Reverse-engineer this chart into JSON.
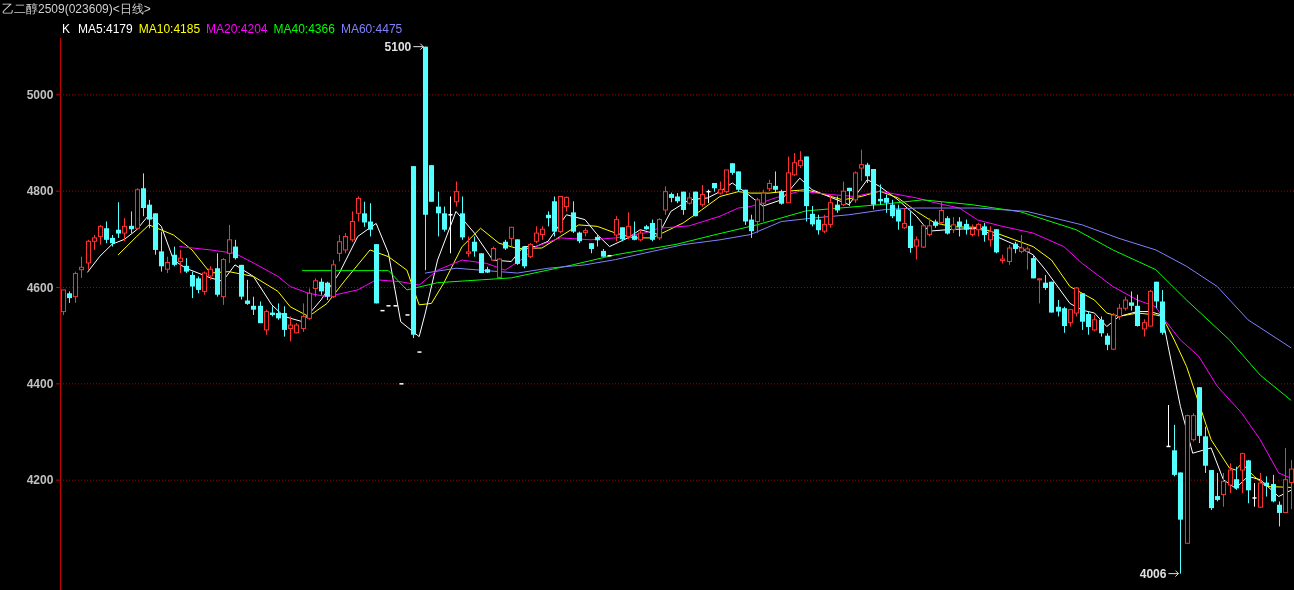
{
  "chart_data": {
    "type": "candlestick",
    "title": "乙二醇2509(023609)<日线>",
    "legend_title": "K",
    "legend": "top left",
    "grid": "y",
    "ylim": [
      3972,
      5118
    ],
    "yticks": [
      4200,
      4400,
      4600,
      4800,
      5000
    ],
    "categories": [
      null,
      null,
      null,
      null,
      null,
      null,
      null,
      null,
      null,
      null,
      null,
      null,
      null,
      null,
      null,
      null,
      null,
      null,
      null,
      null,
      null,
      null,
      null,
      null,
      null,
      null,
      null,
      null,
      null,
      null,
      null,
      null,
      null,
      null,
      null,
      null,
      null,
      null,
      null,
      null,
      null,
      null,
      null,
      null,
      null,
      null,
      null,
      null,
      null,
      null,
      null,
      null,
      null,
      null,
      null,
      null,
      null,
      null,
      null,
      null,
      null,
      null,
      null,
      null,
      null,
      null,
      null,
      null,
      null,
      null,
      null,
      null,
      null,
      null,
      null,
      null,
      null,
      null,
      null,
      null,
      null,
      null,
      null,
      null,
      null,
      null,
      null,
      null,
      null,
      null,
      null,
      null,
      null,
      null,
      null,
      null,
      null,
      null,
      null,
      null,
      null,
      null,
      null,
      null,
      null,
      null,
      null,
      null,
      null,
      null,
      null,
      null,
      null,
      null,
      null,
      null,
      null,
      null,
      null,
      null,
      null,
      null,
      null,
      null,
      null,
      null,
      null,
      null,
      null,
      null,
      null,
      null,
      null,
      null,
      null,
      null,
      null,
      null,
      null,
      null,
      null,
      null,
      null,
      null,
      null,
      null,
      null,
      null,
      null,
      null,
      null,
      null,
      null,
      null,
      null,
      null,
      null,
      null,
      null,
      null,
      null,
      null,
      null,
      null,
      null,
      null,
      null,
      null,
      null,
      null,
      null,
      null,
      null,
      null,
      null,
      null,
      null,
      null,
      null,
      null,
      null,
      null,
      null,
      null,
      null,
      null,
      null,
      null,
      null,
      null,
      null,
      null,
      null,
      null,
      null,
      null,
      null,
      null,
      null,
      null,
      null
    ],
    "ohlc": [
      [
        4550,
        4595,
        4543,
        4595
      ],
      [
        4588,
        4592,
        4568,
        4578
      ],
      [
        4581,
        4633,
        4568,
        4629
      ],
      [
        4637,
        4664,
        4620,
        4642
      ],
      [
        4651,
        4699,
        4637,
        4696
      ],
      [
        4696,
        4709,
        4678,
        4703
      ],
      [
        4706,
        4730,
        4689,
        4727
      ],
      [
        4723,
        4737,
        4692,
        4699
      ],
      [
        4703,
        4709,
        4685,
        4692
      ],
      [
        4720,
        4777,
        4703,
        4712
      ],
      [
        4713,
        4744,
        4696,
        4727
      ],
      [
        4728,
        4758,
        4713,
        4721
      ],
      [
        4723,
        4806,
        4720,
        4803
      ],
      [
        4806,
        4837,
        4748,
        4765
      ],
      [
        4772,
        4782,
        4723,
        4741
      ],
      [
        4754,
        4754,
        4668,
        4678
      ],
      [
        4675,
        4716,
        4633,
        4644
      ],
      [
        4638,
        4664,
        4630,
        4652
      ],
      [
        4668,
        4685,
        4644,
        4647
      ],
      [
        4654,
        4678,
        4630,
        4661
      ],
      [
        4645,
        4661,
        4630,
        4633
      ],
      [
        4626,
        4633,
        4578,
        4602
      ],
      [
        4619,
        4623,
        4588,
        4595
      ],
      [
        4592,
        4633,
        4585,
        4630
      ],
      [
        4624,
        4644,
        4616,
        4638
      ],
      [
        4640,
        4671,
        4581,
        4585
      ],
      [
        4581,
        4661,
        4564,
        4658
      ],
      [
        4671,
        4730,
        4651,
        4699
      ],
      [
        4685,
        4699,
        4658,
        4661
      ],
      [
        4647,
        4647,
        4575,
        4581
      ],
      [
        4573,
        4616,
        4564,
        4566
      ],
      [
        4562,
        4581,
        4543,
        4554
      ],
      [
        4562,
        4571,
        4526,
        4526
      ],
      [
        4512,
        4554,
        4502,
        4550
      ],
      [
        4548,
        4561,
        4540,
        4543
      ],
      [
        4547,
        4567,
        4533,
        4536
      ],
      [
        4547,
        4561,
        4498,
        4512
      ],
      [
        4515,
        4540,
        4488,
        4522
      ],
      [
        4506,
        4526,
        4505,
        4522
      ],
      [
        4515,
        4567,
        4508,
        4540
      ],
      [
        4536,
        4598,
        4533,
        4588
      ],
      [
        4598,
        4619,
        4581,
        4614
      ],
      [
        4612,
        4619,
        4585,
        4592
      ],
      [
        4610,
        4612,
        4574,
        4581
      ],
      [
        4581,
        4657,
        4578,
        4647
      ],
      [
        4671,
        4709,
        4654,
        4695
      ],
      [
        4678,
        4713,
        4671,
        4706
      ],
      [
        4699,
        4758,
        4695,
        4737
      ],
      [
        4754,
        4789,
        4737,
        4785
      ],
      [
        4754,
        4778,
        4726,
        4735
      ],
      [
        4737,
        4775,
        4706,
        4720
      ],
      [
        4690,
        4690,
        4567,
        4567
      ],
      [
        4552,
        4552,
        4552,
        4552
      ],
      [
        4562,
        4562,
        4562,
        4562
      ],
      [
        4562,
        4562,
        4562,
        4562
      ],
      [
        4400,
        4400,
        4400,
        4400
      ],
      [
        4543,
        4543,
        4543,
        4543
      ],
      [
        4852,
        4852,
        4495,
        4502
      ],
      [
        4466,
        4466,
        4466,
        4466
      ],
      [
        5100,
        5100,
        4636,
        4751
      ],
      [
        4854,
        4854,
        4778,
        4778
      ],
      [
        4768,
        4799,
        4706,
        4754
      ],
      [
        4754,
        4768,
        4716,
        4720
      ],
      [
        4751,
        4789,
        4671,
        4751
      ],
      [
        4778,
        4820,
        4768,
        4799
      ],
      [
        4754,
        4789,
        4699,
        4704
      ],
      [
        4671,
        4706,
        4664,
        4674
      ],
      [
        4695,
        4706,
        4664,
        4675
      ],
      [
        4671,
        4671,
        4630,
        4630
      ],
      [
        4638,
        4643,
        4630,
        4631
      ],
      [
        4657,
        4685,
        4657,
        4681
      ],
      [
        4621,
        4661,
        4619,
        4659
      ],
      [
        4695,
        4699,
        4678,
        4681
      ],
      [
        4702,
        4726,
        4685,
        4725
      ],
      [
        4700,
        4700,
        4647,
        4649
      ],
      [
        4685,
        4685,
        4640,
        4644
      ],
      [
        4664,
        4692,
        4661,
        4689
      ],
      [
        4696,
        4727,
        4692,
        4713
      ],
      [
        4710,
        4727,
        4699,
        4721
      ],
      [
        4751,
        4758,
        4727,
        4744
      ],
      [
        4779,
        4789,
        4706,
        4716
      ],
      [
        4716,
        4789,
        4713,
        4789
      ],
      [
        4768,
        4789,
        4758,
        4787
      ],
      [
        4756,
        4779,
        4713,
        4716
      ],
      [
        4714,
        4716,
        4692,
        4696
      ],
      [
        4714,
        4723,
        4706,
        4718
      ],
      [
        4692,
        4692,
        4671,
        4680
      ],
      [
        4705,
        4709,
        4685,
        4698
      ],
      [
        4676,
        4680,
        4664,
        4664
      ],
      [
        4666,
        4666,
        4666,
        4666
      ],
      [
        4709,
        4748,
        4696,
        4741
      ],
      [
        4725,
        4725,
        4696,
        4700
      ],
      [
        4706,
        4756,
        4700,
        4727
      ],
      [
        4708,
        4737,
        4698,
        4699
      ],
      [
        4699,
        4720,
        4696,
        4713
      ],
      [
        4727,
        4730,
        4720,
        4721
      ],
      [
        4734,
        4741,
        4696,
        4699
      ],
      [
        4703,
        4744,
        4699,
        4741
      ],
      [
        4761,
        4810,
        4751,
        4799
      ],
      [
        4794,
        4797,
        4777,
        4786
      ],
      [
        4789,
        4796,
        4775,
        4779
      ],
      [
        4799,
        4799,
        4751,
        4761
      ],
      [
        4775,
        4797,
        4772,
        4786
      ],
      [
        4799,
        4799,
        4748,
        4748
      ],
      [
        4772,
        4813,
        4768,
        4793
      ],
      [
        4799,
        4803,
        4775,
        4799
      ],
      [
        4817,
        4817,
        4799,
        4806
      ],
      [
        4796,
        4820,
        4793,
        4803
      ],
      [
        4799,
        4844,
        4796,
        4844
      ],
      [
        4858,
        4858,
        4834,
        4838
      ],
      [
        4841,
        4841,
        4799,
        4803
      ],
      [
        4803,
        4803,
        4730,
        4737
      ],
      [
        4741,
        4751,
        4703,
        4717
      ],
      [
        4737,
        4786,
        4713,
        4782
      ],
      [
        4775,
        4803,
        4737,
        4796
      ],
      [
        4805,
        4824,
        4800,
        4816
      ],
      [
        4811,
        4841,
        4796,
        4803
      ],
      [
        4800,
        4803,
        4772,
        4774
      ],
      [
        4776,
        4872,
        4776,
        4838
      ],
      [
        4834,
        4879,
        4831,
        4859
      ],
      [
        4853,
        4883,
        4848,
        4864
      ],
      [
        4872,
        4872,
        4737,
        4769
      ],
      [
        4753,
        4769,
        4727,
        4731
      ],
      [
        4741,
        4751,
        4710,
        4719
      ],
      [
        4717,
        4751,
        4713,
        4731
      ],
      [
        4731,
        4793,
        4724,
        4776
      ],
      [
        4772,
        4789,
        4755,
        4760
      ],
      [
        4772,
        4820,
        4769,
        4800
      ],
      [
        4807,
        4807,
        4769,
        4800
      ],
      [
        4782,
        4841,
        4776,
        4838
      ],
      [
        4848,
        4886,
        4821,
        4855
      ],
      [
        4855,
        4859,
        4817,
        4831
      ],
      [
        4846,
        4846,
        4762,
        4772
      ],
      [
        4784,
        4814,
        4772,
        4779
      ],
      [
        4786,
        4793,
        4755,
        4776
      ],
      [
        4772,
        4782,
        4744,
        4748
      ],
      [
        4762,
        4772,
        4720,
        4737
      ],
      [
        4724,
        4765,
        4722,
        4733
      ],
      [
        4728,
        4758,
        4672,
        4682
      ],
      [
        4686,
        4706,
        4658,
        4699
      ],
      [
        4684,
        4731,
        4682,
        4728
      ],
      [
        4710,
        4744,
        4706,
        4728
      ],
      [
        4737,
        4741,
        4724,
        4728
      ],
      [
        4735,
        4779,
        4731,
        4760
      ],
      [
        4744,
        4748,
        4710,
        4712
      ],
      [
        4720,
        4746,
        4713,
        4730
      ],
      [
        4737,
        4746,
        4706,
        4726
      ],
      [
        4732,
        4741,
        4710,
        4720
      ],
      [
        4710,
        4731,
        4706,
        4721
      ],
      [
        4720,
        4734,
        4706,
        4731
      ],
      [
        4727,
        4734,
        4695,
        4709
      ],
      [
        4699,
        4727,
        4685,
        4716
      ],
      [
        4721,
        4721,
        4671,
        4673
      ],
      [
        4656,
        4668,
        4650,
        4659
      ],
      [
        4654,
        4688,
        4647,
        4682
      ],
      [
        4691,
        4695,
        4671,
        4680
      ],
      [
        4675,
        4709,
        4671,
        4682
      ],
      [
        4675,
        4685,
        4637,
        4680
      ],
      [
        4661,
        4668,
        4619,
        4619
      ],
      [
        4616,
        4619,
        4567,
        4618
      ],
      [
        4610,
        4626,
        4595,
        4599
      ],
      [
        4612,
        4612,
        4548,
        4548
      ],
      [
        4560,
        4574,
        4540,
        4550
      ],
      [
        4557,
        4560,
        4506,
        4520
      ],
      [
        4527,
        4555,
        4519,
        4554
      ],
      [
        4547,
        4601,
        4540,
        4599
      ],
      [
        4588,
        4588,
        4512,
        4529
      ],
      [
        4545,
        4550,
        4502,
        4518
      ],
      [
        4512,
        4543,
        4509,
        4533
      ],
      [
        4533,
        4540,
        4498,
        4505
      ],
      [
        4500,
        4505,
        4470,
        4481
      ],
      [
        4472,
        4547,
        4470,
        4543
      ],
      [
        4540,
        4566,
        4533,
        4557
      ],
      [
        4557,
        4581,
        4552,
        4574
      ],
      [
        4569,
        4592,
        4552,
        4562
      ],
      [
        4562,
        4585,
        4519,
        4520
      ],
      [
        4514,
        4534,
        4498,
        4527
      ],
      [
        4520,
        4595,
        4519,
        4592
      ],
      [
        4612,
        4612,
        4557,
        4571
      ],
      [
        4571,
        4595,
        4502,
        4506
      ],
      [
        4270,
        4356,
        4270,
        4270
      ],
      [
        4262,
        4315,
        4208,
        4211
      ],
      [
        4216,
        4216,
        4006,
        4118
      ],
      [
        4069,
        4336,
        4069,
        4334
      ],
      [
        4284,
        4339,
        4280,
        4334
      ],
      [
        4393,
        4393,
        4277,
        4292
      ],
      [
        4291,
        4311,
        4215,
        4230
      ],
      [
        4221,
        4221,
        4138,
        4142
      ],
      [
        4167,
        4215,
        4156,
        4159
      ],
      [
        4170,
        4215,
        4145,
        4197
      ],
      [
        4190,
        4235,
        4173,
        4221
      ],
      [
        4202,
        4228,
        4180,
        4183
      ],
      [
        4221,
        4257,
        4173,
        4255
      ],
      [
        4241,
        4242,
        4152,
        4179
      ],
      [
        4163,
        4194,
        4145,
        4163
      ],
      [
        4144,
        4215,
        4142,
        4194
      ],
      [
        4195,
        4208,
        4166,
        4188
      ],
      [
        4192,
        4211,
        4154,
        4156
      ],
      [
        4149,
        4156,
        4104,
        4132
      ],
      [
        4133,
        4267,
        4132,
        4201
      ],
      [
        4195,
        4242,
        4140,
        4223
      ]
    ],
    "colors": [
      "#ff3232",
      "#54ffff",
      "#ff3232",
      "#ff3232",
      "#ff3232",
      "#ff3232",
      "#ff3232",
      "#54ffff",
      "#54ffff",
      "#54ffff",
      "#ff3232",
      "#54ffff",
      "#ff3232",
      "#54ffff",
      "#54ffff",
      "#54ffff",
      "#54ffff",
      "#ff3232",
      "#54ffff",
      "#ff3232",
      "#54ffff",
      "#54ffff",
      "#54ffff",
      "#ff3232",
      "#ff3232",
      "#54ffff",
      "#ff3232",
      "#ff3232",
      "#54ffff",
      "#54ffff",
      "#54ffff",
      "#54ffff",
      "#54ffff",
      "#ff3232",
      "#54ffff",
      "#54ffff",
      "#54ffff",
      "#ff3232",
      "#ff3232",
      "#ff3232",
      "#ff3232",
      "#ff3232",
      "#54ffff",
      "#54ffff",
      "#ff3232",
      "#ff3232",
      "#ff3232",
      "#ff3232",
      "#ff3232",
      "#54ffff",
      "#54ffff",
      "#54ffff",
      "#ffffff",
      "#ffffff",
      "#ffffff",
      "#ffffff",
      "#ffffff",
      "#54ffff",
      "#ffffff",
      "#54ffff",
      "#54ffff",
      "#54ffff",
      "#54ffff",
      "#ffffff",
      "#ff3232",
      "#54ffff",
      "#ff3232",
      "#54ffff",
      "#54ffff",
      "#54ffff",
      "#ff3232",
      "#ff3232",
      "#54ffff",
      "#ff3232",
      "#54ffff",
      "#54ffff",
      "#ff3232",
      "#ff3232",
      "#ff3232",
      "#54ffff",
      "#54ffff",
      "#ff3232",
      "#ff3232",
      "#54ffff",
      "#54ffff",
      "#ff3232",
      "#54ffff",
      "#54ffff",
      "#54ffff",
      "#ffffff",
      "#ff3232",
      "#54ffff",
      "#ff3232",
      "#54ffff",
      "#ff3232",
      "#54ffff",
      "#54ffff",
      "#ff3232",
      "#ff3232",
      "#54ffff",
      "#54ffff",
      "#54ffff",
      "#ff3232",
      "#54ffff",
      "#ff3232",
      "#ffffff",
      "#54ffff",
      "#ff3232",
      "#ff3232",
      "#54ffff",
      "#54ffff",
      "#54ffff",
      "#54ffff",
      "#ff3232",
      "#ff3232",
      "#ff3232",
      "#54ffff",
      "#54ffff",
      "#ff3232",
      "#ff3232",
      "#ff3232",
      "#54ffff",
      "#54ffff",
      "#54ffff",
      "#ff3232",
      "#ff3232",
      "#54ffff",
      "#ff3232",
      "#54ffff",
      "#ff3232",
      "#ff3232",
      "#54ffff",
      "#54ffff",
      "#54ffff",
      "#54ffff",
      "#54ffff",
      "#54ffff",
      "#ff3232",
      "#54ffff",
      "#ff3232",
      "#ff3232",
      "#ff3232",
      "#54ffff",
      "#ff3232",
      "#54ffff",
      "#ff3232",
      "#54ffff",
      "#54ffff",
      "#ff3232",
      "#ff3232",
      "#54ffff",
      "#ff3232",
      "#54ffff",
      "#ff3232",
      "#ff3232",
      "#54ffff",
      "#ff3232",
      "#ff3232",
      "#54ffff",
      "#ff3232",
      "#54ffff",
      "#54ffff",
      "#54ffff",
      "#54ffff",
      "#ff3232",
      "#ff3232",
      "#54ffff",
      "#54ffff",
      "#ff3232",
      "#54ffff",
      "#54ffff",
      "#ff3232",
      "#ff3232",
      "#ff3232",
      "#54ffff",
      "#54ffff",
      "#ff3232",
      "#ff3232",
      "#54ffff",
      "#54ffff",
      "#ffffff",
      "#54ffff",
      "#54ffff",
      "#ff3232",
      "#ff3232",
      "#54ffff",
      "#54ffff",
      "#54ffff",
      "#54ffff",
      "#ff3232",
      "#ff3232",
      "#54ffff",
      "#ff3232",
      "#54ffff",
      "#ffffff",
      "#ff3232",
      "#54ffff",
      "#54ffff",
      "#54ffff",
      "#ff3232",
      "#ff3232"
    ],
    "series": [
      {
        "name": "MA5:4179",
        "type": "line",
        "color": "#ffffff",
        "values": [
          null,
          null,
          null,
          null,
          4632,
          null,
          4665,
          null,
          4690,
          null,
          4700,
          null,
          4720,
          null,
          4751,
          null,
          4727,
          null,
          4657,
          null,
          4640,
          null,
          4630,
          null,
          4620,
          null,
          4613,
          null,
          4647,
          null,
          null,
          4623,
          null,
          null,
          4564,
          null,
          4540,
          null,
          null,
          4529,
          null,
          null,
          4574,
          null,
          null,
          4630,
          null,
          null,
          4706,
          null,
          null,
          4733,
          null,
          4671,
          null,
          4529,
          null,
          null,
          4498,
          4547,
          null,
          4657,
          null,
          null,
          4758,
          null,
          null,
          4713,
          null,
          null,
          4657,
          null,
          null,
          4654,
          null,
          4685,
          null,
          4685,
          null,
          4696,
          null,
          null,
          4751,
          null,
          null,
          4741,
          null,
          4710,
          null,
          4685,
          null,
          null,
          4703,
          null,
          4720,
          null,
          null,
          4710,
          null,
          4758,
          null,
          null,
          4782,
          null,
          null,
          4786,
          null,
          4799,
          null,
          4817,
          null,
          4799,
          null,
          null,
          4769,
          null,
          null,
          4782,
          null,
          null,
          4827,
          null,
          4803,
          null,
          null,
          null,
          null,
          null,
          4772,
          null,
          null,
          4824,
          null,
          4810,
          null,
          null,
          4782,
          null,
          null,
          4748,
          null,
          4717,
          null,
          null,
          4720,
          null,
          null,
          null,
          null,
          4723,
          null,
          null,
          4706,
          null,
          null,
          4689,
          null,
          null,
          4668,
          null,
          4637,
          null,
          null,
          null,
          4567,
          null,
          4553,
          null,
          4547,
          null,
          4519,
          null,
          4540,
          null,
          null,
          4550,
          null,
          4550,
          null,
          4543,
          4478,
          null,
          4353,
          null,
          4256,
          null,
          null,
          4267,
          null,
          4201,
          null,
          4183,
          null,
          4208,
          null,
          4201,
          null,
          null,
          4166,
          null,
          4179
        ]
      },
      {
        "name": "MA10:4185",
        "type": "line",
        "color": "#ffff00",
        "values": [
          null,
          null,
          null,
          null,
          null,
          null,
          null,
          null,
          null,
          4668,
          null,
          null,
          4706,
          null,
          4730,
          null,
          null,
          null,
          4709,
          null,
          null,
          4678,
          null,
          null,
          4630,
          null,
          null,
          4633,
          null,
          null,
          null,
          4623,
          null,
          null,
          null,
          4592,
          null,
          4560,
          null,
          null,
          4540,
          null,
          null,
          4567,
          null,
          null,
          4616,
          null,
          null,
          null,
          4678,
          null,
          null,
          4664,
          null,
          null,
          4636,
          null,
          4564,
          null,
          4567,
          null,
          4609,
          null,
          null,
          4685,
          null,
          null,
          4723,
          null,
          null,
          4692,
          null,
          null,
          4681,
          null,
          null,
          null,
          4682,
          null,
          null,
          4706,
          null,
          null,
          4730,
          null,
          null,
          4727,
          null,
          null,
          4713,
          null,
          null,
          4703,
          null,
          null,
          4703,
          null,
          null,
          null,
          null,
          4734,
          null,
          null,
          4761,
          null,
          null,
          4789,
          null,
          null,
          4799,
          null,
          4796,
          null,
          null,
          4796,
          null,
          null,
          4800,
          null,
          null,
          4803,
          null,
          null,
          4793,
          null,
          null,
          4782,
          null,
          null,
          4789,
          null,
          null,
          4800,
          null,
          null,
          4786,
          null,
          null,
          4758,
          null,
          null,
          4734,
          null,
          null,
          4726,
          null,
          null,
          null,
          4725,
          null,
          null,
          4713,
          null,
          null,
          4699,
          null,
          null,
          4685,
          null,
          null,
          4657,
          null,
          null,
          4602,
          null,
          null,
          null,
          4574,
          null,
          4547,
          null,
          4540,
          null,
          null,
          4547,
          null,
          null,
          4543,
          4540,
          null,
          4491,
          null,
          4436,
          null,
          null,
          null,
          4284,
          null,
          null,
          4225,
          4221,
          4235,
          null,
          4208,
          null,
          4187,
          null,
          null,
          null,
          4185
        ]
      },
      {
        "name": "MA20:4204",
        "type": "line",
        "color": "#ff00ff",
        "values": [
          null,
          null,
          null,
          null,
          null,
          null,
          null,
          null,
          null,
          null,
          null,
          null,
          null,
          null,
          null,
          null,
          null,
          null,
          null,
          4685,
          null,
          null,
          null,
          null,
          4678,
          null,
          null,
          null,
          4671,
          null,
          null,
          4651,
          null,
          null,
          null,
          4623,
          null,
          4602,
          null,
          null,
          4588,
          null,
          null,
          4581,
          null,
          null,
          null,
          null,
          4595,
          null,
          null,
          4616,
          null,
          null,
          null,
          4612,
          null,
          null,
          4605,
          null,
          null,
          4636,
          null,
          null,
          null,
          4657,
          null,
          null,
          null,
          4650,
          null,
          null,
          4636,
          null,
          null,
          4661,
          null,
          4685,
          null,
          null,
          null,
          4703,
          null,
          null,
          null,
          null,
          4699,
          null,
          null,
          null,
          4703,
          null,
          null,
          null,
          null,
          4714,
          null,
          4723,
          null,
          null,
          null,
          null,
          4728,
          null,
          null,
          null,
          null,
          4748,
          null,
          null,
          4765,
          null,
          4768,
          null,
          null,
          null,
          4786,
          null,
          null,
          null,
          4800,
          null,
          null,
          null,
          null,
          4793,
          null,
          null,
          null,
          4789,
          null,
          null,
          null,
          4800,
          null,
          null,
          null,
          null,
          null,
          4786,
          null,
          null,
          4776,
          null,
          null,
          null,
          4765,
          null,
          null,
          4740,
          null,
          null,
          null,
          4727,
          null,
          null,
          null,
          null,
          4713,
          null,
          null,
          null,
          null,
          4685,
          null,
          null,
          4650,
          null,
          null,
          null,
          null,
          4602,
          null,
          null,
          null,
          4574,
          null,
          null,
          4560,
          4540,
          null,
          null,
          4491,
          null,
          null,
          4457,
          null,
          null,
          4395,
          null,
          null,
          null,
          4339,
          null,
          null,
          4284,
          null,
          null,
          4215,
          null,
          4204
        ]
      },
      {
        "name": "MA40:4366",
        "type": "line",
        "color": "#00ff00",
        "values": [
          null,
          null,
          null,
          null,
          null,
          null,
          null,
          null,
          null,
          null,
          null,
          null,
          null,
          null,
          null,
          null,
          null,
          null,
          null,
          null,
          null,
          null,
          null,
          null,
          null,
          null,
          null,
          null,
          null,
          null,
          null,
          null,
          null,
          null,
          null,
          null,
          null,
          null,
          null,
          4635,
          null,
          null,
          null,
          null,
          null,
          null,
          null,
          null,
          null,
          null,
          null,
          null,
          null,
          4635,
          null,
          null,
          4595,
          null,
          null,
          null,
          null,
          4610,
          null,
          null,
          null,
          null,
          null,
          null,
          null,
          null,
          null,
          null,
          null,
          4620,
          null,
          null,
          null,
          null,
          null,
          null,
          null,
          null,
          null,
          4647,
          null,
          null,
          null,
          null,
          null,
          null,
          4668,
          null,
          null,
          null,
          null,
          null,
          null,
          null,
          null,
          null,
          4690,
          null,
          null,
          null,
          null,
          null,
          4709,
          null,
          null,
          null,
          null,
          null,
          null,
          4730,
          null,
          null,
          null,
          null,
          null,
          null,
          null,
          4759,
          null,
          null,
          null,
          null,
          null,
          null,
          null,
          null,
          null,
          null,
          null,
          4772,
          null,
          null,
          null,
          null,
          null,
          null,
          4782,
          null,
          null,
          null,
          null,
          null,
          null,
          null,
          4772,
          null,
          null,
          null,
          null,
          null,
          null,
          null,
          4757,
          null,
          null,
          null,
          null,
          null,
          null,
          null,
          null,
          4720,
          null,
          null,
          null,
          null,
          null,
          4678,
          null,
          null,
          null,
          null,
          null,
          null,
          4637,
          null,
          null,
          null,
          null,
          4574,
          null,
          null,
          null,
          null,
          null,
          null,
          4491,
          null,
          null,
          null,
          null,
          4418,
          null,
          null,
          null,
          null,
          4366
        ]
      },
      {
        "name": "MA60:4475",
        "type": "line",
        "color": "#8080ff",
        "values": [
          null,
          null,
          null,
          null,
          null,
          null,
          null,
          null,
          null,
          null,
          null,
          null,
          null,
          null,
          null,
          null,
          null,
          null,
          null,
          null,
          null,
          null,
          null,
          null,
          null,
          null,
          null,
          null,
          null,
          null,
          null,
          null,
          null,
          null,
          null,
          null,
          null,
          null,
          null,
          null,
          null,
          null,
          null,
          null,
          null,
          null,
          null,
          null,
          null,
          null,
          null,
          null,
          null,
          null,
          null,
          null,
          null,
          null,
          null,
          4630,
          null,
          null,
          null,
          null,
          4640,
          null,
          null,
          null,
          null,
          4635,
          null,
          null,
          null,
          null,
          4630,
          null,
          null,
          null,
          null,
          4640,
          null,
          null,
          null,
          null,
          null,
          4647,
          null,
          null,
          null,
          null,
          4658,
          null,
          null,
          null,
          null,
          null,
          4675,
          null,
          null,
          null,
          null,
          4689,
          null,
          null,
          null,
          null,
          null,
          4699,
          null,
          null,
          null,
          null,
          4710,
          null,
          null,
          null,
          null,
          4737,
          null,
          null,
          null,
          null,
          4744,
          null,
          null,
          null,
          null,
          null,
          4751,
          null,
          null,
          null,
          null,
          null,
          4762,
          null,
          null,
          null,
          null,
          4765,
          null,
          null,
          null,
          null,
          null,
          4765,
          null,
          null,
          null,
          4765,
          null,
          null,
          null,
          null,
          null,
          null,
          null,
          4758,
          null,
          null,
          null,
          null,
          null,
          null,
          null,
          null,
          4730,
          null,
          null,
          null,
          null,
          null,
          4702,
          null,
          null,
          null,
          null,
          null,
          4678,
          null,
          null,
          null,
          null,
          4644,
          null,
          null,
          null,
          null,
          4602,
          null,
          null,
          null,
          null,
          4533,
          null,
          null,
          null,
          null,
          null,
          null,
          4475
        ]
      }
    ],
    "annotations": [
      "5100",
      "4006"
    ]
  }
}
